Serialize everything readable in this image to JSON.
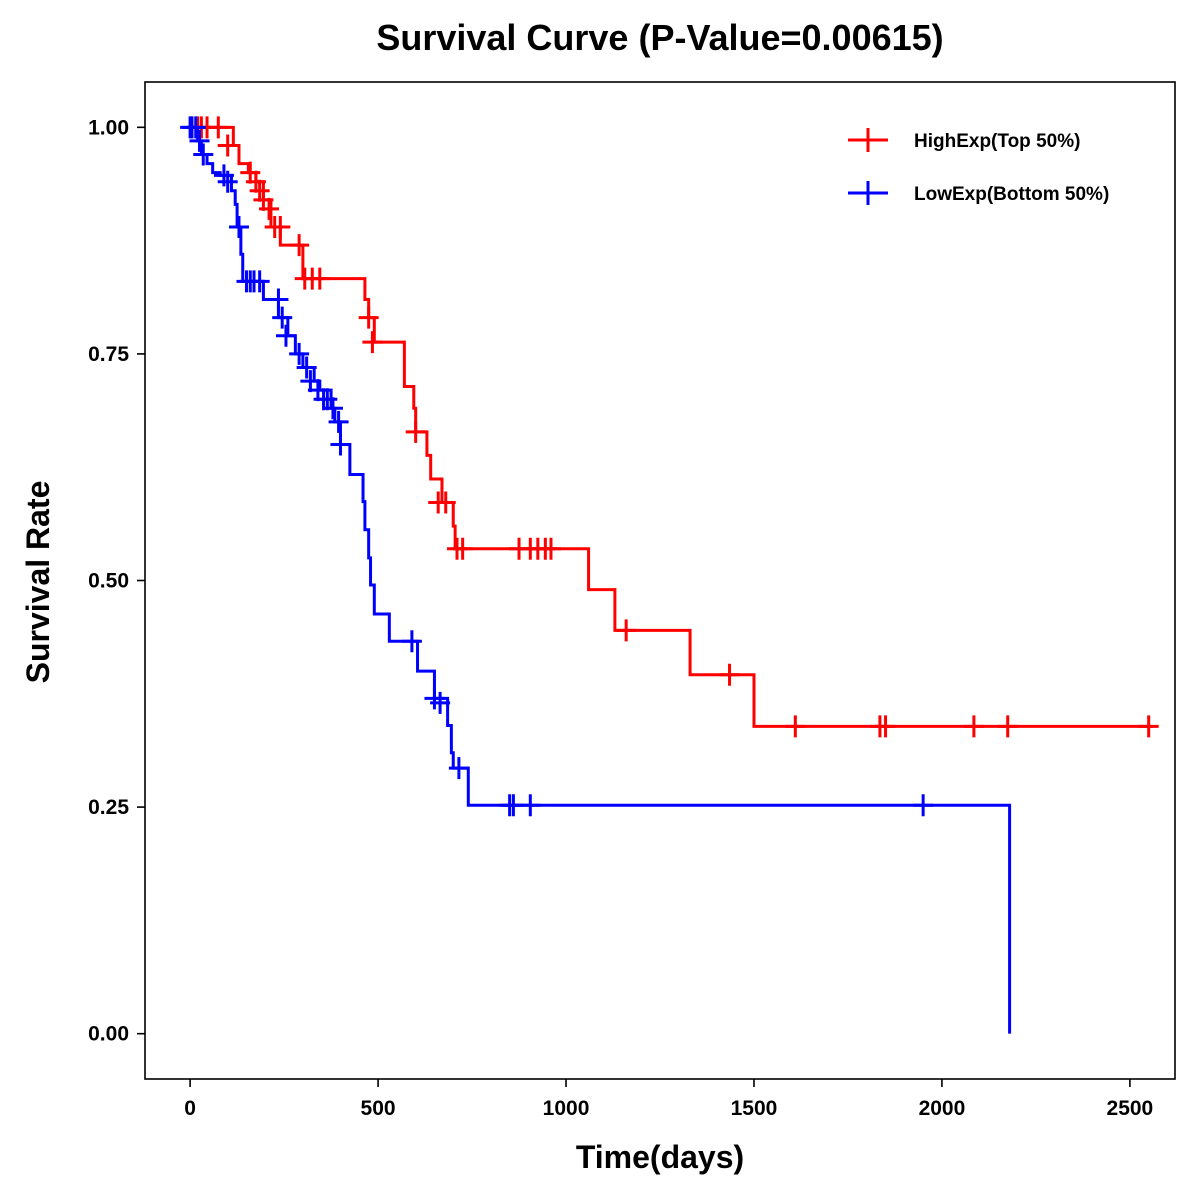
{
  "chart_data": {
    "type": "line",
    "subtype": "kaplan-meier",
    "title": "Survival Curve (P-Value=0.00615)",
    "xlabel": "Time(days)",
    "ylabel": "Survival Rate",
    "xlim": [
      -120,
      2620
    ],
    "ylim": [
      -0.05,
      1.05
    ],
    "xticks": [
      0,
      500,
      1000,
      1500,
      2000,
      2500
    ],
    "xtick_labels": [
      "0",
      "500",
      "1000",
      "1500",
      "2000",
      "2500"
    ],
    "yticks": [
      0,
      0.25,
      0.5,
      0.75,
      1.0
    ],
    "ytick_labels": [
      "0.00",
      "0.25",
      "0.50",
      "0.75",
      "1.00"
    ],
    "grid": false,
    "legend_position": "top-right",
    "series": [
      {
        "name": "HighExp(Top 50%)",
        "color": "#ff0000",
        "steps": [
          [
            0,
            1.0
          ],
          [
            115,
            0.98
          ],
          [
            130,
            0.96
          ],
          [
            155,
            0.95
          ],
          [
            175,
            0.94
          ],
          [
            195,
            0.92
          ],
          [
            215,
            0.89
          ],
          [
            240,
            0.87
          ],
          [
            300,
            0.833
          ],
          [
            465,
            0.81
          ],
          [
            475,
            0.79
          ],
          [
            490,
            0.763
          ],
          [
            570,
            0.714
          ],
          [
            595,
            0.69
          ],
          [
            600,
            0.664
          ],
          [
            630,
            0.638
          ],
          [
            640,
            0.612
          ],
          [
            670,
            0.586
          ],
          [
            700,
            0.56
          ],
          [
            705,
            0.535
          ],
          [
            1060,
            0.49
          ],
          [
            1130,
            0.445
          ],
          [
            1330,
            0.396
          ],
          [
            1500,
            0.339
          ],
          [
            2560,
            0.339
          ]
        ],
        "censored": [
          [
            20,
            1.0
          ],
          [
            30,
            1.0
          ],
          [
            45,
            1.0
          ],
          [
            75,
            1.0
          ],
          [
            100,
            0.98
          ],
          [
            160,
            0.95
          ],
          [
            175,
            0.94
          ],
          [
            185,
            0.93
          ],
          [
            195,
            0.92
          ],
          [
            210,
            0.91
          ],
          [
            225,
            0.89
          ],
          [
            240,
            0.89
          ],
          [
            290,
            0.87
          ],
          [
            305,
            0.833
          ],
          [
            325,
            0.833
          ],
          [
            345,
            0.833
          ],
          [
            475,
            0.79
          ],
          [
            485,
            0.763
          ],
          [
            600,
            0.664
          ],
          [
            660,
            0.586
          ],
          [
            680,
            0.586
          ],
          [
            710,
            0.535
          ],
          [
            725,
            0.535
          ],
          [
            875,
            0.535
          ],
          [
            905,
            0.535
          ],
          [
            925,
            0.535
          ],
          [
            945,
            0.535
          ],
          [
            960,
            0.535
          ],
          [
            1160,
            0.445
          ],
          [
            1435,
            0.396
          ],
          [
            1610,
            0.339
          ],
          [
            1835,
            0.339
          ],
          [
            1850,
            0.339
          ],
          [
            2085,
            0.339
          ],
          [
            2175,
            0.339
          ],
          [
            2550,
            0.339
          ]
        ]
      },
      {
        "name": "LowExp(Bottom 50%)",
        "color": "#0000ff",
        "steps": [
          [
            0,
            1.0
          ],
          [
            20,
            0.985
          ],
          [
            30,
            0.97
          ],
          [
            45,
            0.96
          ],
          [
            60,
            0.95
          ],
          [
            80,
            0.947
          ],
          [
            110,
            0.93
          ],
          [
            120,
            0.915
          ],
          [
            125,
            0.89
          ],
          [
            135,
            0.86
          ],
          [
            140,
            0.83
          ],
          [
            195,
            0.81
          ],
          [
            235,
            0.79
          ],
          [
            260,
            0.77
          ],
          [
            280,
            0.75
          ],
          [
            300,
            0.735
          ],
          [
            330,
            0.72
          ],
          [
            345,
            0.71
          ],
          [
            375,
            0.69
          ],
          [
            385,
            0.675
          ],
          [
            400,
            0.65
          ],
          [
            425,
            0.617
          ],
          [
            460,
            0.587
          ],
          [
            465,
            0.556
          ],
          [
            475,
            0.525
          ],
          [
            480,
            0.495
          ],
          [
            490,
            0.463
          ],
          [
            530,
            0.433
          ],
          [
            605,
            0.4
          ],
          [
            650,
            0.37
          ],
          [
            685,
            0.34
          ],
          [
            695,
            0.31
          ],
          [
            700,
            0.293
          ],
          [
            740,
            0.252
          ],
          [
            2180,
            0.252
          ],
          [
            2180,
            0.0
          ]
        ],
        "censored": [
          [
            0,
            1.0
          ],
          [
            5,
            1.0
          ],
          [
            15,
            1.0
          ],
          [
            25,
            0.985
          ],
          [
            35,
            0.97
          ],
          [
            90,
            0.947
          ],
          [
            100,
            0.94
          ],
          [
            130,
            0.89
          ],
          [
            150,
            0.83
          ],
          [
            160,
            0.83
          ],
          [
            170,
            0.83
          ],
          [
            185,
            0.83
          ],
          [
            235,
            0.81
          ],
          [
            245,
            0.79
          ],
          [
            255,
            0.77
          ],
          [
            290,
            0.75
          ],
          [
            310,
            0.735
          ],
          [
            320,
            0.72
          ],
          [
            340,
            0.71
          ],
          [
            355,
            0.7
          ],
          [
            365,
            0.7
          ],
          [
            380,
            0.69
          ],
          [
            395,
            0.675
          ],
          [
            400,
            0.65
          ],
          [
            590,
            0.433
          ],
          [
            650,
            0.37
          ],
          [
            665,
            0.365
          ],
          [
            715,
            0.293
          ],
          [
            850,
            0.252
          ],
          [
            860,
            0.252
          ],
          [
            905,
            0.252
          ],
          [
            1950,
            0.252
          ]
        ]
      }
    ]
  }
}
